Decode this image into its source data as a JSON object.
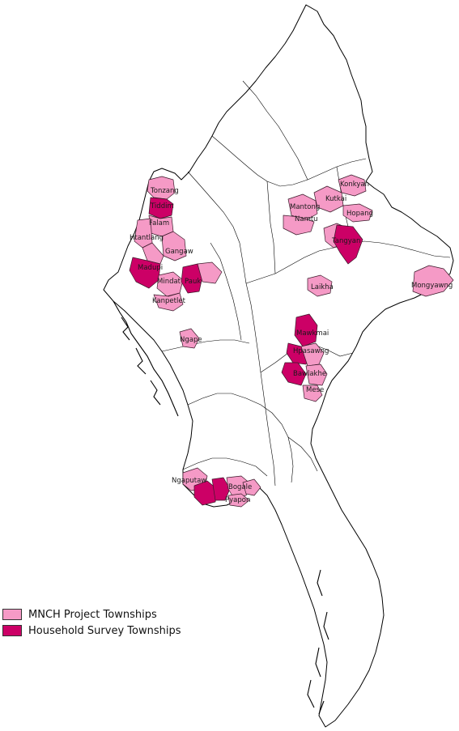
{
  "colors": {
    "project": "#f59ac6",
    "survey": "#cc0066",
    "background": "#ffffff",
    "boundary": "#000000"
  },
  "legend": {
    "items": [
      {
        "label": "MNCH Project Townships",
        "color_key": "project"
      },
      {
        "label": "Household Survey Townships",
        "color_key": "survey"
      }
    ]
  },
  "labels": {
    "tonzang": "Tonzang",
    "tiddim": "Tiddim",
    "falam": "Falam",
    "htantlang": "Htantlang",
    "gangaw": "Gangaw",
    "madupi": "Madupi",
    "mindat": "Mindat",
    "pauk": "Pauk",
    "kanpetlet": "Kanpetlet",
    "ngape": "Ngape",
    "konkyan": "Konkyan",
    "kutkai": "Kutkai",
    "mantong": "Mantong",
    "namtu": "Namtu",
    "hopang": "Hopang",
    "tangyan": "Tangyan",
    "laikha": "Laikha",
    "mongyawng": "Mongyawng",
    "mawkmai": "Mawkmai",
    "hpasawng": "Hpasawng",
    "bawlakhe": "Bawlakhe",
    "mese": "Mese",
    "ngaputaw": "Ngaputaw",
    "bogale": "Bogale",
    "pyapon": "Pyapon"
  }
}
